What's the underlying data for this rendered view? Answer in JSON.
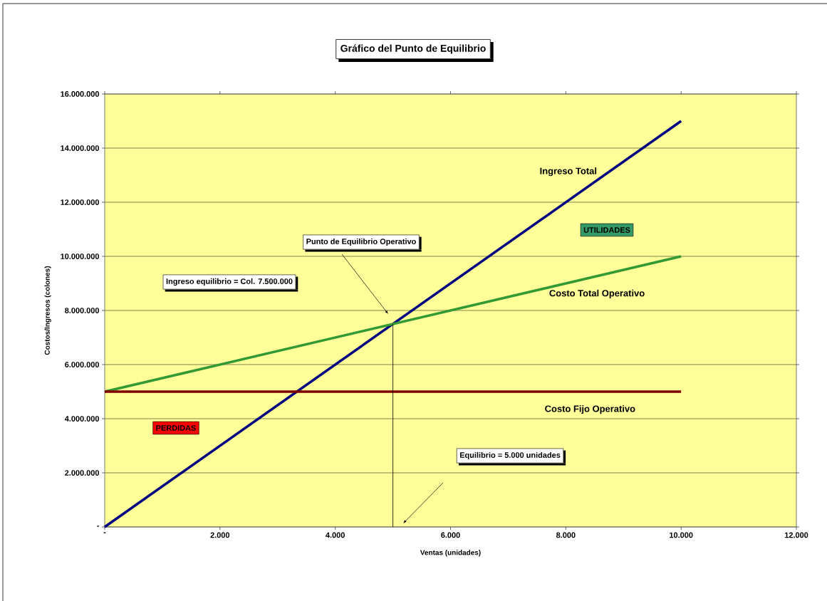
{
  "chart_data": {
    "type": "line",
    "title": "Gráfico del Punto de Equilibrio",
    "xlabel": "Ventas (unidades)",
    "ylabel": "Costos/Ingresos (colones)",
    "xlim": [
      0,
      12000
    ],
    "ylim": [
      0,
      16000000
    ],
    "xticks": [
      {
        "value": 0,
        "label": "-"
      },
      {
        "value": 2000,
        "label": "2.000"
      },
      {
        "value": 4000,
        "label": "4.000"
      },
      {
        "value": 6000,
        "label": "6.000"
      },
      {
        "value": 8000,
        "label": "8.000"
      },
      {
        "value": 10000,
        "label": "10.000"
      },
      {
        "value": 12000,
        "label": "12.000"
      }
    ],
    "yticks": [
      {
        "value": 0,
        "label": "-"
      },
      {
        "value": 2000000,
        "label": "2.000.000"
      },
      {
        "value": 4000000,
        "label": "4.000.000"
      },
      {
        "value": 6000000,
        "label": "6.000.000"
      },
      {
        "value": 8000000,
        "label": "8.000.000"
      },
      {
        "value": 10000000,
        "label": "10.000.000"
      },
      {
        "value": 12000000,
        "label": "12.000.000"
      },
      {
        "value": 14000000,
        "label": "14.000.000"
      },
      {
        "value": 16000000,
        "label": "16.000.000"
      }
    ],
    "grid": "y",
    "marker": "none",
    "line_style": "solid",
    "series": [
      {
        "name": "Ingreso Total",
        "color": "#000080",
        "x": [
          0,
          10000
        ],
        "values": [
          0,
          15000000
        ]
      },
      {
        "name": "Costo Total Operativo",
        "color": "#339933",
        "x": [
          0,
          10000
        ],
        "values": [
          5000000,
          10000000
        ]
      },
      {
        "name": "Costo Fijo Operativo",
        "color": "#800000",
        "x": [
          0,
          10000
        ],
        "values": [
          5000000,
          5000000
        ]
      },
      {
        "color": "#000000",
        "x": [
          5000,
          5000
        ],
        "values": [
          0,
          7500000
        ]
      }
    ],
    "annotations": [
      "Punto de Equilibrio Operativo",
      "Ingreso equilibrio = Col. 7.500.000",
      "Equilibrio = 5.000 unidades",
      "UTILIDADES",
      "PERDIDAS"
    ]
  }
}
